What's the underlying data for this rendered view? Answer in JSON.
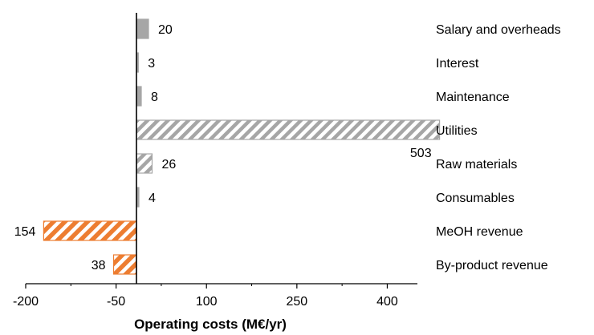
{
  "chart_data": {
    "type": "bar",
    "orientation": "horizontal",
    "xlabel": "Operating costs (M€/yr)",
    "ylabel": "",
    "xlim": [
      -200,
      450
    ],
    "xticks": [
      -200,
      -50,
      100,
      250,
      400
    ],
    "grid": false,
    "categories": [
      "Salary and overheads",
      "Interest",
      "Maintenance",
      "Utilities",
      "Raw materials",
      "Consumables",
      "MeOH revenue",
      "By-product revenue"
    ],
    "values": [
      20,
      3,
      8,
      503,
      26,
      4,
      -154,
      -38
    ],
    "value_labels": [
      "20",
      "3",
      "8",
      "503",
      "26",
      "4",
      "154",
      "38"
    ],
    "bar_styles": [
      "solid",
      "solid",
      "solid",
      "hatch",
      "hatch",
      "solid",
      "hatch",
      "hatch"
    ],
    "colors": {
      "solid_fill": "#a6a6a6",
      "hatch_gray": "#a6a6a6",
      "hatch_orange": "#ed7d31",
      "axis": "#000000"
    }
  }
}
